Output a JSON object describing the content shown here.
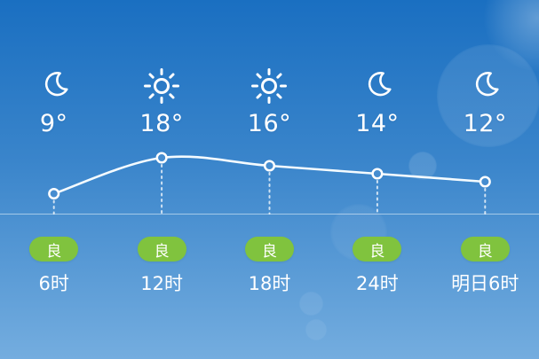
{
  "widget": {
    "title": "hourly-weather-forecast",
    "columns": [
      {
        "time": "6时",
        "temp": "9°",
        "temp_value": 9,
        "icon": "moon-icon",
        "aqi": "良"
      },
      {
        "time": "12时",
        "temp": "18°",
        "temp_value": 18,
        "icon": "sun-icon",
        "aqi": "良"
      },
      {
        "time": "18时",
        "temp": "16°",
        "temp_value": 16,
        "icon": "sun-icon",
        "aqi": "良"
      },
      {
        "time": "24时",
        "temp": "14°",
        "temp_value": 14,
        "icon": "moon-icon",
        "aqi": "良"
      },
      {
        "time": "明日6时",
        "temp": "12°",
        "temp_value": 12,
        "icon": "moon-icon",
        "aqi": "良"
      }
    ]
  },
  "chart_data": {
    "type": "line",
    "x": [
      "6时",
      "12时",
      "18时",
      "24时",
      "明日6时"
    ],
    "series": [
      {
        "name": "temperature",
        "values": [
          9,
          18,
          16,
          14,
          12
        ]
      }
    ],
    "unit": "°",
    "ylim": [
      9,
      18
    ],
    "grid": false,
    "legend": false,
    "annotations": [
      "良",
      "良",
      "良",
      "良",
      "良"
    ],
    "style": {
      "line_color": "#f4fbff",
      "marker": "open-circle",
      "droplines": "dotted"
    }
  },
  "colors": {
    "background_top": "#1a6fc1",
    "background_bottom": "#74addf",
    "aqi_badge_green": "#80c33e",
    "text": "#ffffff",
    "chart_line": "#f4fbff",
    "marker_fill": "#468dd0"
  }
}
